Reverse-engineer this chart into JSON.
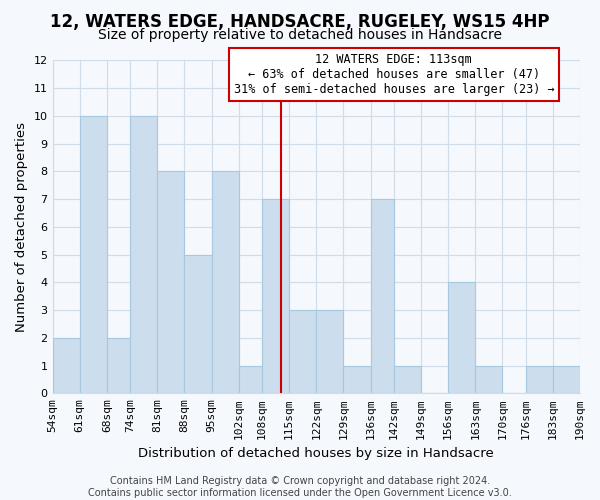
{
  "title": "12, WATERS EDGE, HANDSACRE, RUGELEY, WS15 4HP",
  "subtitle": "Size of property relative to detached houses in Handsacre",
  "xlabel": "Distribution of detached houses by size in Handsacre",
  "ylabel": "Number of detached properties",
  "bin_edges": [
    54,
    61,
    68,
    74,
    81,
    88,
    95,
    102,
    108,
    115,
    122,
    129,
    136,
    142,
    149,
    156,
    163,
    170,
    176,
    183,
    190
  ],
  "bin_labels": [
    "54sqm",
    "61sqm",
    "68sqm",
    "74sqm",
    "81sqm",
    "88sqm",
    "95sqm",
    "102sqm",
    "108sqm",
    "115sqm",
    "122sqm",
    "129sqm",
    "136sqm",
    "142sqm",
    "149sqm",
    "156sqm",
    "163sqm",
    "170sqm",
    "176sqm",
    "183sqm",
    "190sqm"
  ],
  "counts": [
    2,
    10,
    2,
    10,
    8,
    5,
    8,
    1,
    7,
    3,
    3,
    1,
    7,
    1,
    0,
    4,
    1,
    0,
    1,
    1
  ],
  "bar_color": "#ccdded",
  "bar_edge_color": "#a8c8e0",
  "property_line_x": 113,
  "property_line_color": "#cc0000",
  "annotation_line1": "12 WATERS EDGE: 113sqm",
  "annotation_line2": "← 63% of detached houses are smaller (47)",
  "annotation_line3": "31% of semi-detached houses are larger (23) →",
  "annotation_box_edge_color": "#cc0000",
  "annotation_box_face_color": "#ffffff",
  "ylim": [
    0,
    12
  ],
  "yticks": [
    0,
    1,
    2,
    3,
    4,
    5,
    6,
    7,
    8,
    9,
    10,
    11,
    12
  ],
  "footer_text": "Contains HM Land Registry data © Crown copyright and database right 2024.\nContains public sector information licensed under the Open Government Licence v3.0.",
  "background_color": "#f5f8fc",
  "plot_bg_color": "#f5f8fc",
  "grid_color": "#d0dce8",
  "title_fontsize": 12,
  "subtitle_fontsize": 10,
  "label_fontsize": 9.5,
  "tick_fontsize": 8,
  "annotation_fontsize": 8.5,
  "footer_fontsize": 7
}
